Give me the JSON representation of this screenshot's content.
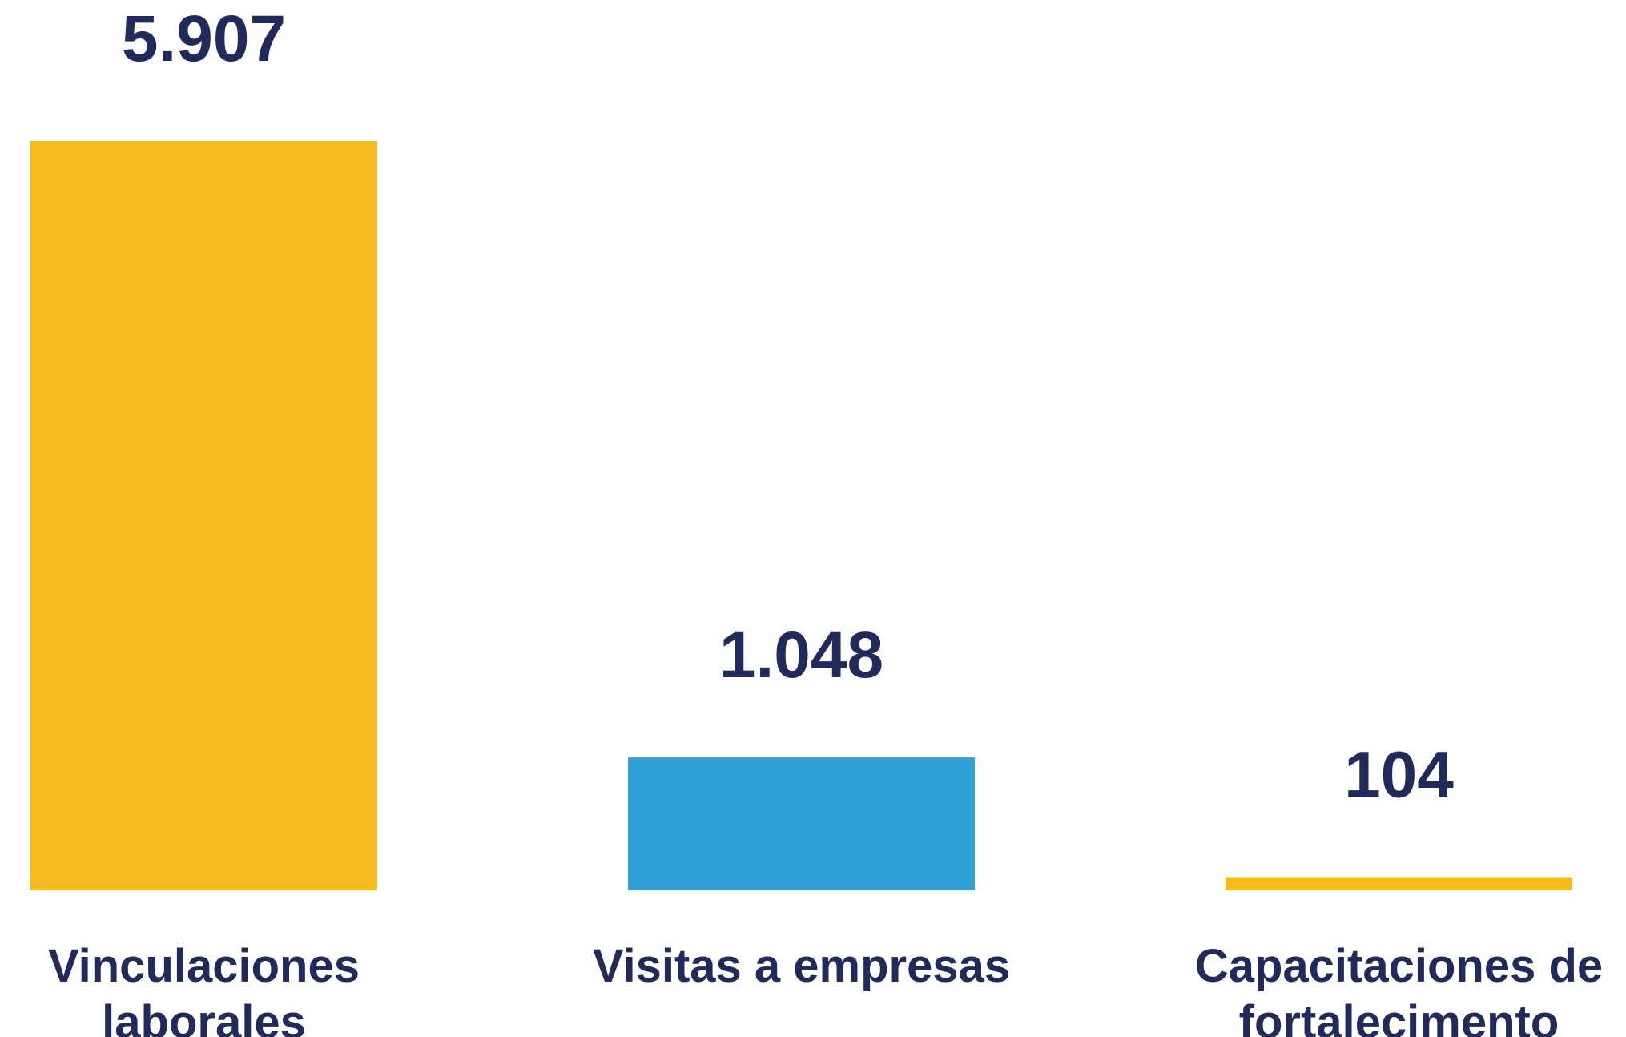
{
  "chart_data": {
    "type": "bar",
    "categories": [
      [
        "Vinculaciones",
        "laborales"
      ],
      [
        "Visitas a empresas"
      ],
      [
        "Capacitaciones de",
        "fortalecimento"
      ]
    ],
    "values": [
      5907,
      1048,
      104
    ],
    "value_labels": [
      "5.907",
      "1.048",
      "104"
    ],
    "bar_colors": [
      "#F5BA1E",
      "#2FA1D8",
      "#F5BA1E"
    ],
    "text_color": "#202B5C",
    "title": "",
    "xlabel": "",
    "ylabel": "",
    "grid": false,
    "legend": "none"
  }
}
